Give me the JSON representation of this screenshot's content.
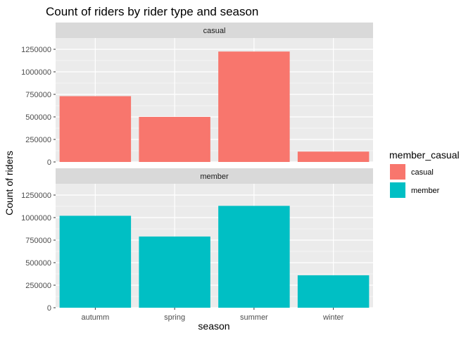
{
  "chart_data": {
    "type": "bar",
    "title": "Count of riders by rider type and season",
    "xlabel": "season",
    "ylabel": "Count of riders",
    "categories": [
      "autumm",
      "spring",
      "summer",
      "winter"
    ],
    "ylim": [
      0,
      1375000
    ],
    "yticks": [
      0,
      250000,
      500000,
      750000,
      1000000,
      1250000
    ],
    "ytick_labels": [
      "0",
      "250000",
      "500000",
      "750000",
      "1000000",
      "1250000"
    ],
    "grid": true,
    "facets": [
      {
        "strip": "casual",
        "series": "casual",
        "values": [
          730000,
          500000,
          1225000,
          115000
        ]
      },
      {
        "strip": "member",
        "series": "member",
        "values": [
          1020000,
          790000,
          1130000,
          360000
        ]
      }
    ],
    "legend": {
      "title": "member_casual",
      "position": "right",
      "items": [
        {
          "label": "casual",
          "color": "#F8766D"
        },
        {
          "label": "member",
          "color": "#00BFC4"
        }
      ]
    },
    "colors": {
      "casual": "#F8766D",
      "member": "#00BFC4",
      "panel_bg": "#EBEBEB",
      "strip_bg": "#D9D9D9",
      "grid": "#FFFFFF"
    }
  }
}
